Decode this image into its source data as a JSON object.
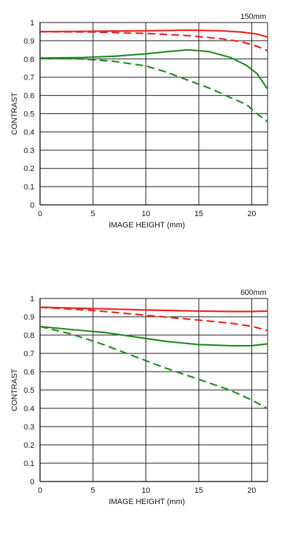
{
  "chart_data": [
    {
      "type": "line",
      "corner_label": "150mm",
      "xlabel": "IMAGE HEIGHT (mm)",
      "ylabel": "CONTRAST",
      "xlim": [
        0,
        21.5
      ],
      "ylim": [
        0,
        1
      ],
      "x_ticks": [
        0,
        5,
        10,
        15,
        20
      ],
      "y_ticks": [
        0,
        0.1,
        0.2,
        0.3,
        0.4,
        0.5,
        0.6,
        0.7,
        0.8,
        0.9,
        1
      ],
      "y_tick_labels": [
        "0",
        "0.1",
        "0.2",
        "0.3",
        "0.4",
        "0.5",
        "0.6",
        "0.7",
        "0.8",
        "0.9",
        "1"
      ],
      "grid": true,
      "series": [
        {
          "color": "#e8231e",
          "dash": false,
          "points": [
            [
              0,
              0.95
            ],
            [
              5,
              0.952
            ],
            [
              10,
              0.955
            ],
            [
              14,
              0.958
            ],
            [
              17,
              0.955
            ],
            [
              19,
              0.948
            ],
            [
              20.5,
              0.937
            ],
            [
              21.5,
              0.92
            ]
          ]
        },
        {
          "color": "#e8231e",
          "dash": true,
          "points": [
            [
              0,
              0.95
            ],
            [
              5,
              0.948
            ],
            [
              10,
              0.94
            ],
            [
              14,
              0.928
            ],
            [
              17,
              0.912
            ],
            [
              19,
              0.895
            ],
            [
              20.5,
              0.87
            ],
            [
              21.5,
              0.845
            ]
          ]
        },
        {
          "color": "#1e8c1e",
          "dash": false,
          "points": [
            [
              0,
              0.805
            ],
            [
              4,
              0.808
            ],
            [
              7,
              0.815
            ],
            [
              10,
              0.828
            ],
            [
              12,
              0.84
            ],
            [
              14,
              0.85
            ],
            [
              16,
              0.84
            ],
            [
              18,
              0.808
            ],
            [
              19.5,
              0.765
            ],
            [
              20.5,
              0.72
            ],
            [
              21.5,
              0.635
            ]
          ]
        },
        {
          "color": "#1e8c1e",
          "dash": true,
          "points": [
            [
              0,
              0.805
            ],
            [
              4,
              0.8
            ],
            [
              7,
              0.787
            ],
            [
              10,
              0.762
            ],
            [
              12,
              0.727
            ],
            [
              14,
              0.683
            ],
            [
              16,
              0.64
            ],
            [
              18,
              0.588
            ],
            [
              19.5,
              0.55
            ],
            [
              20.5,
              0.5
            ],
            [
              21.5,
              0.455
            ]
          ]
        }
      ]
    },
    {
      "type": "line",
      "corner_label": "600mm",
      "xlabel": "IMAGE HEIGHT (mm)",
      "ylabel": "CONTRAST",
      "xlim": [
        0,
        21.5
      ],
      "ylim": [
        0,
        1
      ],
      "x_ticks": [
        0,
        5,
        10,
        15,
        20
      ],
      "y_ticks": [
        0,
        0.1,
        0.2,
        0.3,
        0.4,
        0.5,
        0.6,
        0.7,
        0.8,
        0.9,
        1
      ],
      "y_tick_labels": [
        "0",
        "0.1",
        "0.2",
        "0.3",
        "0.4",
        "0.5",
        "0.6",
        "0.7",
        "0.8",
        "0.9",
        "1"
      ],
      "grid": true,
      "series": [
        {
          "color": "#e8231e",
          "dash": false,
          "points": [
            [
              0,
              0.952
            ],
            [
              5,
              0.945
            ],
            [
              10,
              0.937
            ],
            [
              15,
              0.931
            ],
            [
              18,
              0.929
            ],
            [
              20,
              0.929
            ],
            [
              21.5,
              0.931
            ]
          ]
        },
        {
          "color": "#e8231e",
          "dash": true,
          "points": [
            [
              0,
              0.952
            ],
            [
              5,
              0.935
            ],
            [
              10,
              0.908
            ],
            [
              15,
              0.882
            ],
            [
              18,
              0.865
            ],
            [
              20,
              0.848
            ],
            [
              21.5,
              0.825
            ]
          ]
        },
        {
          "color": "#1e8c1e",
          "dash": false,
          "points": [
            [
              0,
              0.847
            ],
            [
              3,
              0.83
            ],
            [
              6,
              0.815
            ],
            [
              9,
              0.79
            ],
            [
              12,
              0.765
            ],
            [
              15,
              0.748
            ],
            [
              18,
              0.742
            ],
            [
              20,
              0.742
            ],
            [
              21.5,
              0.752
            ]
          ]
        },
        {
          "color": "#1e8c1e",
          "dash": true,
          "points": [
            [
              0,
              0.847
            ],
            [
              3,
              0.805
            ],
            [
              6,
              0.748
            ],
            [
              9,
              0.682
            ],
            [
              12,
              0.617
            ],
            [
              15,
              0.558
            ],
            [
              18,
              0.498
            ],
            [
              20,
              0.445
            ],
            [
              21.5,
              0.398
            ]
          ]
        }
      ]
    }
  ]
}
